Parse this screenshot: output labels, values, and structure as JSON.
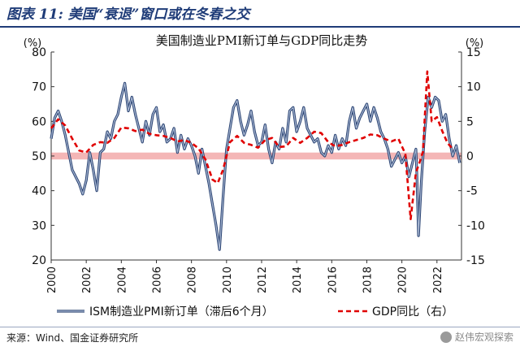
{
  "figure": {
    "label": "图表 11:",
    "caption": "美国“衰退”窗口或在冬春之交"
  },
  "source_note": "来源：Wind、国金证券研究所",
  "watermark": "赵伟宏观探索",
  "colors": {
    "header_blue": "#1f3c78",
    "ism_line": "#2a4372",
    "ism_line_inner": "#a9b8d3",
    "gdp_line": "#e00000",
    "band": "#f4b6b6"
  },
  "chart_data": {
    "type": "line",
    "title": "美国制造业PMI新订单与GDP同比走势",
    "left_unit": "(%)",
    "right_unit": "(%)",
    "y_left": {
      "min": 20,
      "max": 80,
      "ticks": [
        20,
        30,
        40,
        50,
        60,
        70,
        80
      ]
    },
    "y_right": {
      "min": -15,
      "max": 15,
      "ticks": [
        -15,
        -10,
        -5,
        0,
        5,
        10,
        15
      ]
    },
    "x_axis": {
      "min": 2000,
      "max": 2023.4,
      "ticks": [
        "2000",
        "2002",
        "2004",
        "2006",
        "2008",
        "2010",
        "2012",
        "2014",
        "2016",
        "2018",
        "2020",
        "2022"
      ]
    },
    "band": {
      "y_low": 49,
      "y_high": 51
    },
    "legend": {
      "position": "bottom",
      "entries": [
        "ISM制造业PMI新订单（滞后6个月）",
        "GDP同比（右）"
      ]
    },
    "series": [
      {
        "name": "ISM制造业PMI新订单（滞后6个月）",
        "axis": "left",
        "points": [
          [
            2000.0,
            55
          ],
          [
            2000.2,
            61
          ],
          [
            2000.4,
            63
          ],
          [
            2000.6,
            60
          ],
          [
            2000.8,
            56
          ],
          [
            2001.0,
            51
          ],
          [
            2001.2,
            46
          ],
          [
            2001.4,
            44
          ],
          [
            2001.6,
            42
          ],
          [
            2001.8,
            39
          ],
          [
            2002.0,
            43
          ],
          [
            2002.2,
            51
          ],
          [
            2002.4,
            46
          ],
          [
            2002.6,
            40
          ],
          [
            2002.8,
            51
          ],
          [
            2003.0,
            52
          ],
          [
            2003.2,
            57
          ],
          [
            2003.4,
            55
          ],
          [
            2003.6,
            60
          ],
          [
            2003.8,
            62
          ],
          [
            2004.0,
            67
          ],
          [
            2004.2,
            71
          ],
          [
            2004.4,
            63
          ],
          [
            2004.6,
            67
          ],
          [
            2004.8,
            62
          ],
          [
            2005.0,
            58
          ],
          [
            2005.2,
            54
          ],
          [
            2005.4,
            60
          ],
          [
            2005.6,
            56
          ],
          [
            2005.8,
            62
          ],
          [
            2006.0,
            64
          ],
          [
            2006.2,
            57
          ],
          [
            2006.4,
            59
          ],
          [
            2006.6,
            54
          ],
          [
            2006.8,
            55
          ],
          [
            2007.0,
            58
          ],
          [
            2007.2,
            51
          ],
          [
            2007.4,
            56
          ],
          [
            2007.6,
            52
          ],
          [
            2007.8,
            55
          ],
          [
            2008.0,
            53
          ],
          [
            2008.2,
            50
          ],
          [
            2008.4,
            45
          ],
          [
            2008.6,
            52
          ],
          [
            2008.8,
            47
          ],
          [
            2009.0,
            42
          ],
          [
            2009.2,
            36
          ],
          [
            2009.4,
            30
          ],
          [
            2009.6,
            23
          ],
          [
            2009.8,
            38
          ],
          [
            2010.0,
            52
          ],
          [
            2010.2,
            58
          ],
          [
            2010.4,
            64
          ],
          [
            2010.6,
            66
          ],
          [
            2010.8,
            60
          ],
          [
            2011.0,
            56
          ],
          [
            2011.2,
            59
          ],
          [
            2011.4,
            63
          ],
          [
            2011.6,
            57
          ],
          [
            2011.8,
            53
          ],
          [
            2012.0,
            54
          ],
          [
            2012.2,
            59
          ],
          [
            2012.4,
            52
          ],
          [
            2012.6,
            48
          ],
          [
            2012.8,
            54
          ],
          [
            2013.0,
            52
          ],
          [
            2013.2,
            58
          ],
          [
            2013.4,
            54
          ],
          [
            2013.6,
            63
          ],
          [
            2013.8,
            64
          ],
          [
            2014.0,
            57
          ],
          [
            2014.2,
            60
          ],
          [
            2014.4,
            64
          ],
          [
            2014.6,
            58
          ],
          [
            2014.8,
            56
          ],
          [
            2015.0,
            54
          ],
          [
            2015.2,
            55
          ],
          [
            2015.4,
            51
          ],
          [
            2015.6,
            50
          ],
          [
            2015.8,
            53
          ],
          [
            2016.0,
            51
          ],
          [
            2016.2,
            56
          ],
          [
            2016.4,
            52
          ],
          [
            2016.6,
            55
          ],
          [
            2016.8,
            53
          ],
          [
            2017.0,
            60
          ],
          [
            2017.2,
            64
          ],
          [
            2017.4,
            58
          ],
          [
            2017.6,
            61
          ],
          [
            2017.8,
            63
          ],
          [
            2018.0,
            65
          ],
          [
            2018.2,
            60
          ],
          [
            2018.4,
            64
          ],
          [
            2018.6,
            61
          ],
          [
            2018.8,
            57
          ],
          [
            2019.0,
            55
          ],
          [
            2019.2,
            52
          ],
          [
            2019.4,
            47
          ],
          [
            2019.6,
            49
          ],
          [
            2019.8,
            51
          ],
          [
            2020.0,
            48
          ],
          [
            2020.2,
            50
          ],
          [
            2020.4,
            44
          ],
          [
            2020.6,
            48
          ],
          [
            2020.8,
            52
          ],
          [
            2020.85,
            45
          ],
          [
            2020.95,
            27
          ],
          [
            2021.1,
            42
          ],
          [
            2021.3,
            57
          ],
          [
            2021.5,
            67
          ],
          [
            2021.7,
            64
          ],
          [
            2021.9,
            67
          ],
          [
            2022.1,
            66
          ],
          [
            2022.3,
            60
          ],
          [
            2022.5,
            62
          ],
          [
            2022.7,
            55
          ],
          [
            2022.9,
            50
          ],
          [
            2023.1,
            53
          ],
          [
            2023.3,
            48
          ]
        ]
      },
      {
        "name": "GDP同比（右）",
        "axis": "right",
        "points": [
          [
            2000.0,
            4.0
          ],
          [
            2000.4,
            5.3
          ],
          [
            2000.8,
            4.4
          ],
          [
            2001.2,
            2.5
          ],
          [
            2001.6,
            0.8
          ],
          [
            2002.0,
            0.5
          ],
          [
            2002.4,
            1.6
          ],
          [
            2002.8,
            2.0
          ],
          [
            2003.2,
            1.9
          ],
          [
            2003.6,
            2.6
          ],
          [
            2004.0,
            4.1
          ],
          [
            2004.4,
            4.0
          ],
          [
            2004.8,
            3.6
          ],
          [
            2005.2,
            3.8
          ],
          [
            2005.6,
            3.2
          ],
          [
            2006.0,
            3.0
          ],
          [
            2006.4,
            2.9
          ],
          [
            2006.8,
            2.6
          ],
          [
            2007.2,
            2.1
          ],
          [
            2007.6,
            2.3
          ],
          [
            2008.0,
            1.9
          ],
          [
            2008.4,
            1.1
          ],
          [
            2008.8,
            -0.5
          ],
          [
            2009.2,
            -3.4
          ],
          [
            2009.5,
            -3.9
          ],
          [
            2009.8,
            -2.0
          ],
          [
            2010.2,
            2.0
          ],
          [
            2010.6,
            2.9
          ],
          [
            2011.0,
            1.9
          ],
          [
            2011.4,
            1.6
          ],
          [
            2011.8,
            1.2
          ],
          [
            2012.2,
            2.3
          ],
          [
            2012.6,
            2.6
          ],
          [
            2013.0,
            1.3
          ],
          [
            2013.4,
            1.4
          ],
          [
            2013.8,
            2.6
          ],
          [
            2014.2,
            1.9
          ],
          [
            2014.6,
            2.6
          ],
          [
            2015.0,
            3.5
          ],
          [
            2015.4,
            3.3
          ],
          [
            2015.8,
            2.0
          ],
          [
            2016.2,
            1.4
          ],
          [
            2016.6,
            1.6
          ],
          [
            2017.0,
            2.0
          ],
          [
            2017.4,
            2.3
          ],
          [
            2017.8,
            2.6
          ],
          [
            2018.2,
            3.1
          ],
          [
            2018.6,
            3.0
          ],
          [
            2019.0,
            2.5
          ],
          [
            2019.4,
            2.1
          ],
          [
            2019.8,
            2.5
          ],
          [
            2020.2,
            0.3
          ],
          [
            2020.5,
            -9.1
          ],
          [
            2020.8,
            -2.4
          ],
          [
            2021.0,
            -1.0
          ],
          [
            2021.2,
            0.6
          ],
          [
            2021.45,
            12.2
          ],
          [
            2021.7,
            5.0
          ],
          [
            2022.0,
            5.6
          ],
          [
            2022.3,
            3.6
          ],
          [
            2022.6,
            1.9
          ],
          [
            2022.9,
            1.0
          ]
        ]
      }
    ]
  }
}
